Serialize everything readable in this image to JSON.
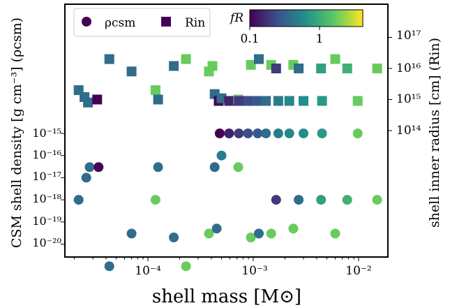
{
  "chart_data": {
    "type": "scatter",
    "xlabel": "shell mass [M⊙]",
    "ylabel_left": "CSM shell density [g cm⁻³] (ρcsm)",
    "ylabel_right": "shell inner radius [cm] (Rin)",
    "x_scale": "log",
    "x_ticks": [
      "10⁻⁴",
      "10⁻³",
      "10⁻²"
    ],
    "y_left_ticks": [
      "10⁻¹⁵",
      "10⁻¹⁶",
      "10⁻¹⁷",
      "10⁻¹⁸",
      "10⁻¹⁹",
      "10⁻²⁰"
    ],
    "y_right_ticks": [
      "10¹⁷",
      "10¹⁶",
      "10¹⁵",
      "10¹⁴"
    ],
    "legend": {
      "placement": "top-left",
      "entries": [
        {
          "label": "ρcsm",
          "marker": "circle"
        },
        {
          "label": "Rin",
          "marker": "square"
        }
      ]
    },
    "colorbar": {
      "title": "fR",
      "scale": "log",
      "ticks": [
        "0.1",
        "1"
      ],
      "range": [
        0.1,
        5
      ],
      "colormap": [
        "#440154",
        "#3b528b",
        "#21918c",
        "#5ec962",
        "#fde725"
      ]
    },
    "series": [
      {
        "name": "ρcsm",
        "marker": "circle",
        "points": [
          {
            "x": 2.2e-05,
            "y": 1e-18,
            "fR": 0.4
          },
          {
            "x": 2.6e-05,
            "y": 1e-17,
            "fR": 0.4
          },
          {
            "x": 2.8e-05,
            "y": 3e-17,
            "fR": 0.4
          },
          {
            "x": 3.4e-05,
            "y": 3e-17,
            "fR": 0.1
          },
          {
            "x": 4.3e-05,
            "y": 1e-21,
            "fR": 0.4
          },
          {
            "x": 7e-05,
            "y": 3e-20,
            "fR": 0.4
          },
          {
            "x": 0.000118,
            "y": 1e-18,
            "fR": 2.0
          },
          {
            "x": 0.000125,
            "y": 3e-17,
            "fR": 0.4
          },
          {
            "x": 0.000176,
            "y": 2e-20,
            "fR": 0.4
          },
          {
            "x": 0.00023,
            "y": 1e-21,
            "fR": 2.0
          },
          {
            "x": 0.00038,
            "y": 3e-20,
            "fR": 2.0
          },
          {
            "x": 0.00043,
            "y": 3e-17,
            "fR": 0.4
          },
          {
            "x": 0.00045,
            "y": 5e-20,
            "fR": 0.4
          },
          {
            "x": 0.00048,
            "y": 1e-15,
            "fR": 0.1
          },
          {
            "x": 0.0005,
            "y": 1e-16,
            "fR": 0.5
          },
          {
            "x": 0.00059,
            "y": 1e-15,
            "fR": 0.15
          },
          {
            "x": 0.00072,
            "y": 3e-17,
            "fR": 2.0
          },
          {
            "x": 0.00073,
            "y": 1e-15,
            "fR": 0.2
          },
          {
            "x": 0.00089,
            "y": 1e-15,
            "fR": 0.25
          },
          {
            "x": 0.00095,
            "y": 2e-20,
            "fR": 2.0
          },
          {
            "x": 0.0011,
            "y": 1e-15,
            "fR": 0.3
          },
          {
            "x": 0.00113,
            "y": 3e-20,
            "fR": 0.4
          },
          {
            "x": 0.00132,
            "y": 1e-15,
            "fR": 0.4
          },
          {
            "x": 0.00148,
            "y": 3e-20,
            "fR": 2.0
          },
          {
            "x": 0.00165,
            "y": 1e-18,
            "fR": 0.2
          },
          {
            "x": 0.00173,
            "y": 1e-15,
            "fR": 0.5
          },
          {
            "x": 0.0022,
            "y": 1e-15,
            "fR": 0.6
          },
          {
            "x": 0.0024,
            "y": 5e-20,
            "fR": 2.0
          },
          {
            "x": 0.0027,
            "y": 1e-18,
            "fR": 0.4
          },
          {
            "x": 0.003,
            "y": 1e-15,
            "fR": 0.7
          },
          {
            "x": 0.0044,
            "y": 1e-18,
            "fR": 0.9
          },
          {
            "x": 0.0045,
            "y": 1e-15,
            "fR": 0.8
          },
          {
            "x": 0.006,
            "y": 3e-20,
            "fR": 2.0
          },
          {
            "x": 0.0078,
            "y": 1e-18,
            "fR": 1.2
          },
          {
            "x": 0.0098,
            "y": 1e-15,
            "fR": 2.0
          },
          {
            "x": 0.015,
            "y": 1e-18,
            "fR": 2.0
          }
        ]
      },
      {
        "name": "Rin",
        "marker": "square",
        "points": [
          {
            "x": 2.2e-05,
            "y": 2000000000000000.0,
            "fR": 0.4
          },
          {
            "x": 2.5e-05,
            "y": 1200000000000000.0,
            "fR": 0.4
          },
          {
            "x": 2.7e-05,
            "y": 800000000000000.0,
            "fR": 0.4
          },
          {
            "x": 3.3e-05,
            "y": 1000000000000000.0,
            "fR": 0.1
          },
          {
            "x": 4.3e-05,
            "y": 2e+16,
            "fR": 0.4
          },
          {
            "x": 7e-05,
            "y": 8000000000000000.0,
            "fR": 0.4
          },
          {
            "x": 0.000118,
            "y": 2000000000000000.0,
            "fR": 2.0
          },
          {
            "x": 0.000125,
            "y": 1000000000000000.0,
            "fR": 0.4
          },
          {
            "x": 0.000176,
            "y": 1.2e+16,
            "fR": 0.4
          },
          {
            "x": 0.00023,
            "y": 2e+16,
            "fR": 2.0
          },
          {
            "x": 0.00038,
            "y": 8000000000000000.0,
            "fR": 2.0
          },
          {
            "x": 0.00041,
            "y": 1.2e+16,
            "fR": 2.0
          },
          {
            "x": 0.00043,
            "y": 1500000000000000.0,
            "fR": 0.4
          },
          {
            "x": 0.00047,
            "y": 900000000000000.0,
            "fR": 0.1
          },
          {
            "x": 0.0005,
            "y": 1100000000000000.0,
            "fR": 0.4
          },
          {
            "x": 0.00059,
            "y": 900000000000000.0,
            "fR": 0.15
          },
          {
            "x": 0.00072,
            "y": 1000000000000000.0,
            "fR": 2.0
          },
          {
            "x": 0.00073,
            "y": 900000000000000.0,
            "fR": 0.2
          },
          {
            "x": 0.00095,
            "y": 1.3e+16,
            "fR": 2.0
          },
          {
            "x": 0.00089,
            "y": 900000000000000.0,
            "fR": 0.25
          },
          {
            "x": 0.0011,
            "y": 900000000000000.0,
            "fR": 0.3
          },
          {
            "x": 0.00113,
            "y": 2e+16,
            "fR": 0.4
          },
          {
            "x": 0.00132,
            "y": 900000000000000.0,
            "fR": 0.4
          },
          {
            "x": 0.00148,
            "y": 1.3e+16,
            "fR": 2.0
          },
          {
            "x": 0.00165,
            "y": 1e+16,
            "fR": 0.2
          },
          {
            "x": 0.00173,
            "y": 900000000000000.0,
            "fR": 0.5
          },
          {
            "x": 0.0022,
            "y": 900000000000000.0,
            "fR": 0.6
          },
          {
            "x": 0.0024,
            "y": 1.3e+16,
            "fR": 2.0
          },
          {
            "x": 0.0027,
            "y": 1e+16,
            "fR": 0.4
          },
          {
            "x": 0.003,
            "y": 900000000000000.0,
            "fR": 0.7
          },
          {
            "x": 0.0044,
            "y": 1e+16,
            "fR": 0.9
          },
          {
            "x": 0.0045,
            "y": 900000000000000.0,
            "fR": 0.8
          },
          {
            "x": 0.006,
            "y": 2e+16,
            "fR": 2.0
          },
          {
            "x": 0.0078,
            "y": 1e+16,
            "fR": 1.2
          },
          {
            "x": 0.0098,
            "y": 900000000000000.0,
            "fR": 2.0
          },
          {
            "x": 0.015,
            "y": 1e+16,
            "fR": 2.0
          }
        ]
      }
    ]
  }
}
